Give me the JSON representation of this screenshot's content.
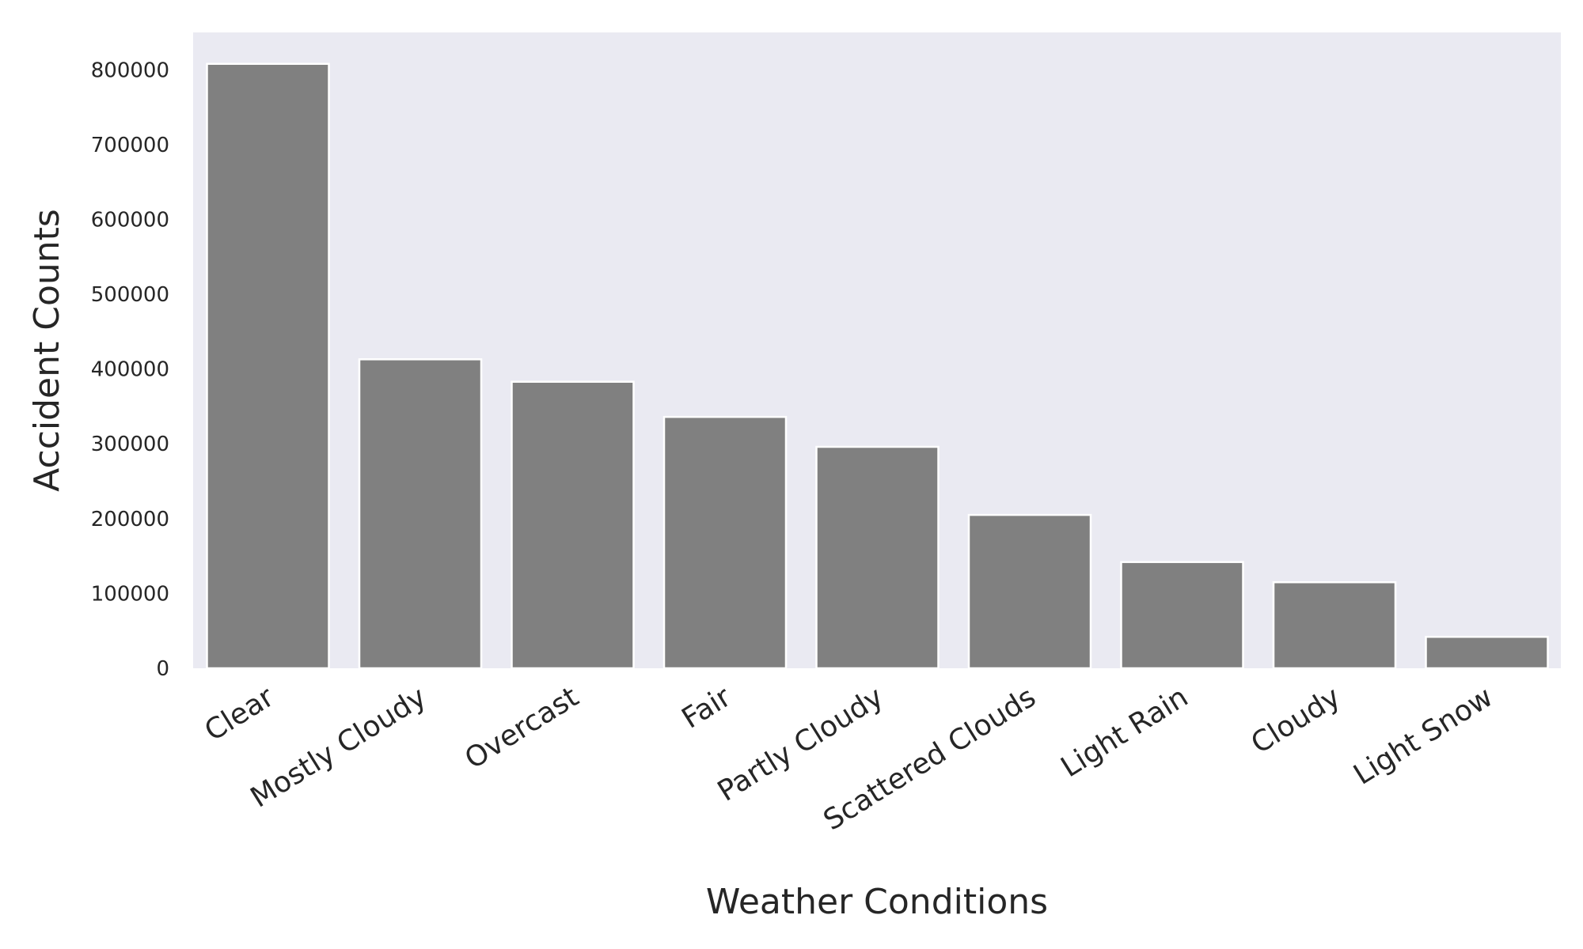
{
  "chart_data": {
    "type": "bar",
    "title": "",
    "xlabel": "Weather Conditions",
    "ylabel": "Accident Counts",
    "categories": [
      "Clear",
      "Mostly Cloudy",
      "Overcast",
      "Fair",
      "Partly Cloudy",
      "Scattered Clouds",
      "Light Rain",
      "Cloudy",
      "Light Snow"
    ],
    "values": [
      808000,
      413000,
      383000,
      336000,
      296000,
      205000,
      142000,
      115000,
      42000
    ],
    "ylim": [
      0,
      850000
    ],
    "yticks": [
      "0",
      "100000",
      "200000",
      "300000",
      "400000",
      "500000",
      "600000",
      "700000",
      "800000"
    ],
    "grid": false,
    "legend": "none"
  },
  "colors": {
    "plot_background": "#eaeaf2",
    "bar_fill": "#808080",
    "bar_edge": "#ffffff",
    "text": "#262626"
  }
}
